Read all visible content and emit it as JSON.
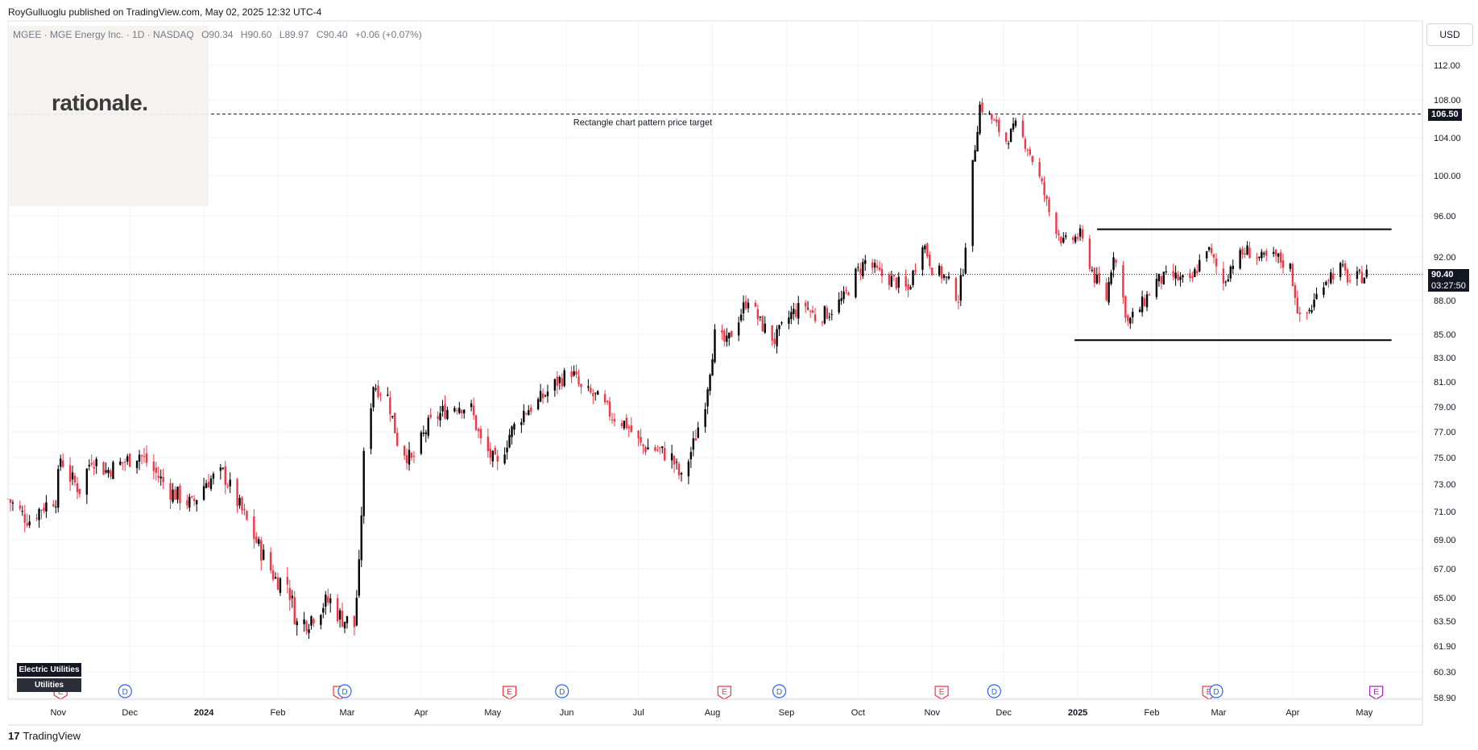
{
  "header": {
    "published_by": "RoyGulluoglu published on TradingView.com, May 02, 2025 12:32 UTC-4",
    "symbol": "MGEE · MGE Energy Inc. · 1D · NASDAQ",
    "open": "O90.34",
    "high": "H90.60",
    "low": "L89.97",
    "close": "C90.40",
    "change": "+0.06 (+0.07%)"
  },
  "logo_text": "rationale.",
  "currency": "USD",
  "tags": {
    "sector": "Electric Utilities",
    "industry": "Utilities"
  },
  "footer": {
    "brand": "TradingView",
    "brand_mark": "17"
  },
  "colors": {
    "up": "#000000",
    "down": "#f23645",
    "grid": "#f0f3fa",
    "axis_text": "#131722"
  },
  "chart_data": {
    "type": "candlestick",
    "title": "",
    "ylim": [
      58.9,
      114.0
    ],
    "y_ticks": [
      {
        "label": "112.00",
        "value": 112
      },
      {
        "label": "108.00",
        "value": 108
      },
      {
        "label": "104.00",
        "value": 104
      },
      {
        "label": "100.00",
        "value": 100
      },
      {
        "label": "96.00",
        "value": 96
      },
      {
        "label": "92.00",
        "value": 92
      },
      {
        "label": "88.00",
        "value": 88
      },
      {
        "label": "85.00",
        "value": 85
      },
      {
        "label": "83.00",
        "value": 83
      },
      {
        "label": "81.00",
        "value": 81
      },
      {
        "label": "79.00",
        "value": 79
      },
      {
        "label": "77.00",
        "value": 77
      },
      {
        "label": "75.00",
        "value": 75
      },
      {
        "label": "73.00",
        "value": 73
      },
      {
        "label": "71.00",
        "value": 71
      },
      {
        "label": "69.00",
        "value": 69
      },
      {
        "label": "67.00",
        "value": 67
      },
      {
        "label": "65.00",
        "value": 65
      },
      {
        "label": "63.50",
        "value": 63.5
      },
      {
        "label": "61.90",
        "value": 61.9
      },
      {
        "label": "60.30",
        "value": 60.3
      },
      {
        "label": "58.90",
        "value": 58.9
      }
    ],
    "x_ticks": [
      {
        "label": "Nov",
        "date": "2023-11-01"
      },
      {
        "label": "Dec",
        "date": "2023-12-01"
      },
      {
        "label": "2024",
        "date": "2024-01-01",
        "bold": true
      },
      {
        "label": "Feb",
        "date": "2024-02-01"
      },
      {
        "label": "Mar",
        "date": "2024-03-01"
      },
      {
        "label": "Apr",
        "date": "2024-04-01"
      },
      {
        "label": "May",
        "date": "2024-05-01"
      },
      {
        "label": "Jun",
        "date": "2024-06-01"
      },
      {
        "label": "Jul",
        "date": "2024-07-01"
      },
      {
        "label": "Aug",
        "date": "2024-08-01"
      },
      {
        "label": "Sep",
        "date": "2024-09-01"
      },
      {
        "label": "Oct",
        "date": "2024-10-01"
      },
      {
        "label": "Nov",
        "date": "2024-11-01"
      },
      {
        "label": "Dec",
        "date": "2024-12-01"
      },
      {
        "label": "2025",
        "date": "2025-01-01",
        "bold": true
      },
      {
        "label": "Feb",
        "date": "2025-02-01"
      },
      {
        "label": "Mar",
        "date": "2025-03-01"
      },
      {
        "label": "Apr",
        "date": "2025-04-01"
      },
      {
        "label": "May",
        "date": "2025-05-01"
      }
    ],
    "x_range": [
      "2023-10-11",
      "2025-05-24"
    ],
    "current_price": {
      "value": 90.4,
      "label": "90.40",
      "countdown": "03:27:50"
    },
    "target_line": {
      "value": 106.5,
      "label": "106.50",
      "text": "Rectangle chart pattern price target",
      "style": "dashed"
    },
    "rectangle": {
      "top": 94.7,
      "bottom": 84.5,
      "start": "2025-01-01",
      "end": "2025-05-07"
    },
    "markers": [
      {
        "type": "E",
        "date": "2023-11-02",
        "color": "#f23645"
      },
      {
        "type": "D",
        "date": "2023-11-29",
        "color": "#2962ff"
      },
      {
        "type": "E",
        "date": "2024-02-27",
        "color": "#f23645"
      },
      {
        "type": "D",
        "date": "2024-02-29",
        "color": "#2962ff"
      },
      {
        "type": "E",
        "date": "2024-05-08",
        "color": "#f23645"
      },
      {
        "type": "D",
        "date": "2024-05-30",
        "color": "#2962ff"
      },
      {
        "type": "E",
        "date": "2024-08-06",
        "color": "#f23645"
      },
      {
        "type": "D",
        "date": "2024-08-29",
        "color": "#2962ff"
      },
      {
        "type": "E",
        "date": "2024-11-05",
        "color": "#f23645"
      },
      {
        "type": "D",
        "date": "2024-11-27",
        "color": "#2962ff"
      },
      {
        "type": "E",
        "date": "2025-02-25",
        "color": "#f23645"
      },
      {
        "type": "D",
        "date": "2025-02-28",
        "color": "#2962ff"
      },
      {
        "type": "E",
        "date": "2025-05-06",
        "color": "#9c27b0"
      }
    ],
    "ohlc_anchors": [
      {
        "date": "2023-10-11",
        "close": 71.9
      },
      {
        "date": "2023-10-17",
        "close": 70.8
      },
      {
        "date": "2023-10-20",
        "close": 70.4
      },
      {
        "date": "2023-10-25",
        "close": 71.3
      },
      {
        "date": "2023-10-31",
        "close": 72.0
      },
      {
        "date": "2023-11-02",
        "close": 75.0
      },
      {
        "date": "2023-11-06",
        "close": 73.5
      },
      {
        "date": "2023-11-10",
        "close": 72.6
      },
      {
        "date": "2023-11-15",
        "close": 75.0
      },
      {
        "date": "2023-11-21",
        "close": 74.0
      },
      {
        "date": "2023-11-29",
        "close": 74.7
      },
      {
        "date": "2023-12-05",
        "close": 75.3
      },
      {
        "date": "2023-12-11",
        "close": 74.0
      },
      {
        "date": "2023-12-18",
        "close": 72.5
      },
      {
        "date": "2023-12-27",
        "close": 71.5
      },
      {
        "date": "2024-01-02",
        "close": 73.2
      },
      {
        "date": "2024-01-09",
        "close": 73.8
      },
      {
        "date": "2024-01-17",
        "close": 71.0
      },
      {
        "date": "2024-01-24",
        "close": 68.5
      },
      {
        "date": "2024-01-31",
        "close": 66.3
      },
      {
        "date": "2024-02-05",
        "close": 66.0
      },
      {
        "date": "2024-02-09",
        "close": 63.3
      },
      {
        "date": "2024-02-14",
        "close": 63.6
      },
      {
        "date": "2024-02-20",
        "close": 64.6
      },
      {
        "date": "2024-02-23",
        "close": 64.8
      },
      {
        "date": "2024-02-27",
        "close": 63.8
      },
      {
        "date": "2024-03-04",
        "close": 63.2
      },
      {
        "date": "2024-03-06",
        "close": 67.0
      },
      {
        "date": "2024-03-08",
        "close": 75.0
      },
      {
        "date": "2024-03-12",
        "close": 80.8
      },
      {
        "date": "2024-03-18",
        "close": 79.8
      },
      {
        "date": "2024-03-22",
        "close": 76.3
      },
      {
        "date": "2024-03-28",
        "close": 74.7
      },
      {
        "date": "2024-04-04",
        "close": 77.5
      },
      {
        "date": "2024-04-10",
        "close": 78.6
      },
      {
        "date": "2024-04-16",
        "close": 79.2
      },
      {
        "date": "2024-04-22",
        "close": 78.8
      },
      {
        "date": "2024-04-26",
        "close": 76.2
      },
      {
        "date": "2024-05-03",
        "close": 74.3
      },
      {
        "date": "2024-05-08",
        "close": 76.8
      },
      {
        "date": "2024-05-14",
        "close": 78.6
      },
      {
        "date": "2024-05-20",
        "close": 79.4
      },
      {
        "date": "2024-05-28",
        "close": 81.0
      },
      {
        "date": "2024-06-03",
        "close": 81.9
      },
      {
        "date": "2024-06-07",
        "close": 80.3
      },
      {
        "date": "2024-06-13",
        "close": 79.8
      },
      {
        "date": "2024-06-20",
        "close": 78.3
      },
      {
        "date": "2024-06-26",
        "close": 77.6
      },
      {
        "date": "2024-07-02",
        "close": 75.9
      },
      {
        "date": "2024-07-09",
        "close": 75.6
      },
      {
        "date": "2024-07-15",
        "close": 75.0
      },
      {
        "date": "2024-07-19",
        "close": 73.3
      },
      {
        "date": "2024-07-24",
        "close": 76.0
      },
      {
        "date": "2024-07-29",
        "close": 79.5
      },
      {
        "date": "2024-08-02",
        "close": 84.9
      },
      {
        "date": "2024-08-07",
        "close": 84.2
      },
      {
        "date": "2024-08-12",
        "close": 86.5
      },
      {
        "date": "2024-08-16",
        "close": 88.3
      },
      {
        "date": "2024-08-21",
        "close": 86.0
      },
      {
        "date": "2024-08-27",
        "close": 84.5
      },
      {
        "date": "2024-09-03",
        "close": 86.8
      },
      {
        "date": "2024-09-09",
        "close": 87.6
      },
      {
        "date": "2024-09-13",
        "close": 86.5
      },
      {
        "date": "2024-09-19",
        "close": 87.0
      },
      {
        "date": "2024-09-25",
        "close": 88.2
      },
      {
        "date": "2024-09-30",
        "close": 90.4
      },
      {
        "date": "2024-10-04",
        "close": 91.6
      },
      {
        "date": "2024-10-10",
        "close": 90.4
      },
      {
        "date": "2024-10-16",
        "close": 89.8
      },
      {
        "date": "2024-10-22",
        "close": 88.9
      },
      {
        "date": "2024-10-28",
        "close": 93.6
      },
      {
        "date": "2024-11-01",
        "close": 91.0
      },
      {
        "date": "2024-11-06",
        "close": 90.2
      },
      {
        "date": "2024-11-12",
        "close": 88.3
      },
      {
        "date": "2024-11-14",
        "close": 91.0
      },
      {
        "date": "2024-11-18",
        "close": 101.0
      },
      {
        "date": "2024-11-21",
        "close": 107.4
      },
      {
        "date": "2024-11-25",
        "close": 106.3
      },
      {
        "date": "2024-12-02",
        "close": 103.7
      },
      {
        "date": "2024-12-06",
        "close": 105.2
      },
      {
        "date": "2024-12-11",
        "close": 103.0
      },
      {
        "date": "2024-12-17",
        "close": 99.0
      },
      {
        "date": "2024-12-20",
        "close": 96.4
      },
      {
        "date": "2024-12-26",
        "close": 93.3
      },
      {
        "date": "2025-01-02",
        "close": 94.1
      },
      {
        "date": "2025-01-08",
        "close": 90.1
      },
      {
        "date": "2025-01-13",
        "close": 88.2
      },
      {
        "date": "2025-01-16",
        "close": 92.5
      },
      {
        "date": "2025-01-22",
        "close": 86.0
      },
      {
        "date": "2025-01-27",
        "close": 87.3
      },
      {
        "date": "2025-02-03",
        "close": 89.8
      },
      {
        "date": "2025-02-10",
        "close": 90.2
      },
      {
        "date": "2025-02-17",
        "close": 89.5
      },
      {
        "date": "2025-02-24",
        "close": 93.0
      },
      {
        "date": "2025-03-03",
        "close": 89.6
      },
      {
        "date": "2025-03-07",
        "close": 91.6
      },
      {
        "date": "2025-03-13",
        "close": 92.6
      },
      {
        "date": "2025-03-19",
        "close": 91.8
      },
      {
        "date": "2025-03-25",
        "close": 92.0
      },
      {
        "date": "2025-03-31",
        "close": 91.0
      },
      {
        "date": "2025-04-04",
        "close": 86.2
      },
      {
        "date": "2025-04-09",
        "close": 87.4
      },
      {
        "date": "2025-04-14",
        "close": 89.9
      },
      {
        "date": "2025-04-21",
        "close": 91.0
      },
      {
        "date": "2025-04-25",
        "close": 89.8
      },
      {
        "date": "2025-05-02",
        "close": 90.4
      }
    ]
  }
}
